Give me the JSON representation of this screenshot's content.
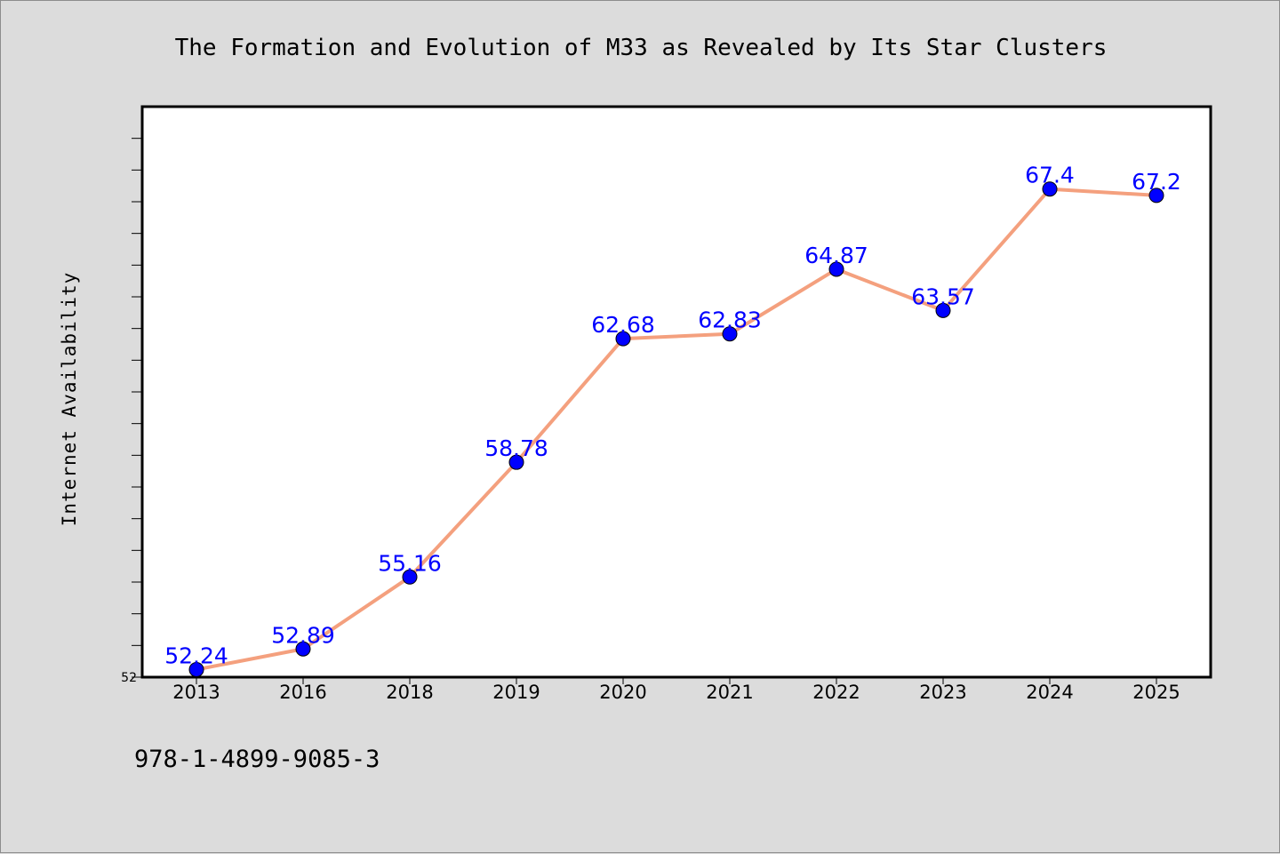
{
  "colors": {
    "background": "#dcdcdc",
    "plot_background": "#ffffff",
    "line": "#f4a07e",
    "marker": "#0000ff",
    "data_label": "#0000ff"
  },
  "footer": {
    "isbn": "978-1-4899-9085-3"
  },
  "chart_data": {
    "type": "line",
    "title": "The Formation and Evolution of M33 as Revealed by Its Star Clusters",
    "xlabel": "",
    "ylabel": "Internet Availability",
    "categories": [
      "2013",
      "2016",
      "2018",
      "2019",
      "2020",
      "2021",
      "2022",
      "2023",
      "2024",
      "2025"
    ],
    "series": [
      {
        "values": [
          52.24,
          52.89,
          55.16,
          58.78,
          62.68,
          62.83,
          64.87,
          63.57,
          67.4,
          67.2
        ],
        "labels": [
          "52.24",
          "52.89",
          "55.16",
          "58.78",
          "62.68",
          "62.83",
          "64.87",
          "63.57",
          "67.4",
          "67.2"
        ]
      }
    ],
    "ylim": [
      52,
      70
    ],
    "yticks": [
      52
    ],
    "y_minor_step": 1,
    "grid": false,
    "legend": "none"
  }
}
